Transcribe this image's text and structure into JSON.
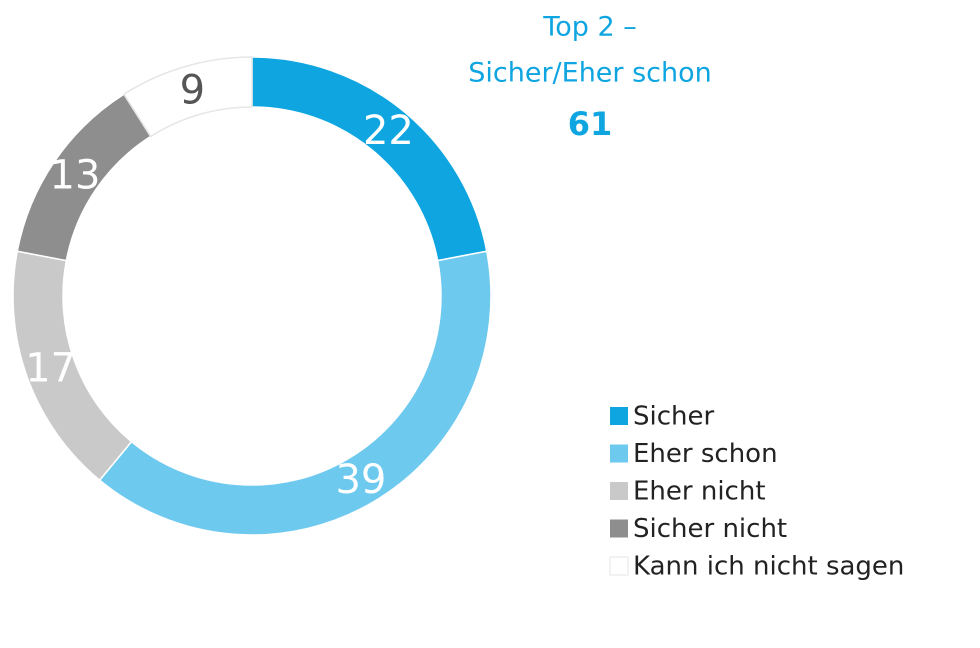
{
  "chart_data": {
    "type": "donut",
    "annotation": {
      "lines": [
        "Top 2 –",
        "Sicher/Eher schon"
      ],
      "value": 61,
      "color": "#0ea5e0"
    },
    "categories": [
      "Sicher",
      "Eher schon",
      "Eher nicht",
      "Sicher nicht",
      "Kann ich nicht sagen"
    ],
    "values": [
      22,
      39,
      17,
      13,
      9
    ],
    "colors": [
      "#0ea5e0",
      "#6ec9ef",
      "#c9c9c9",
      "#8e8e8e",
      "#ffffff"
    ],
    "legend": "bottom-right"
  }
}
